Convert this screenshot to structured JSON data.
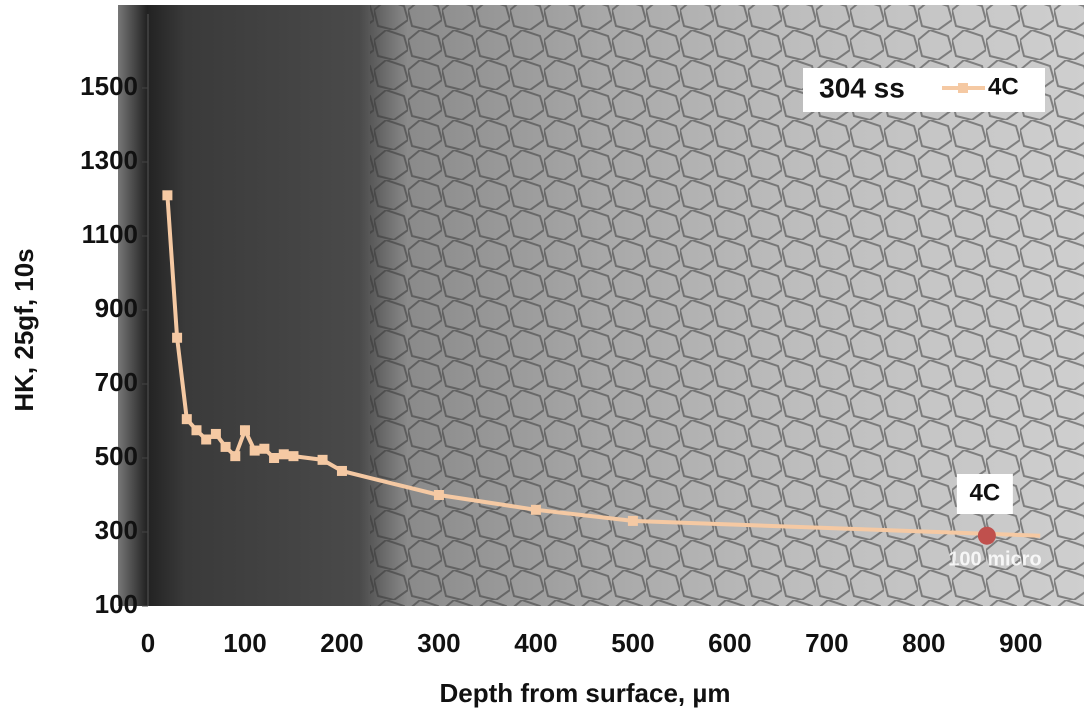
{
  "chart_data": {
    "type": "line",
    "y_label": "HK, 25gf, 10s",
    "x_label": "Depth from surface, µm",
    "material_label": "304 ss",
    "x": [
      20,
      30,
      40,
      50,
      60,
      70,
      80,
      90,
      100,
      110,
      120,
      130,
      140,
      150,
      180,
      200,
      300,
      400,
      500,
      920
    ],
    "series": [
      {
        "name": "4C",
        "color": "#f5c9a3",
        "values": [
          1210,
          825,
          605,
          575,
          550,
          565,
          530,
          505,
          575,
          520,
          525,
          500,
          510,
          505,
          495,
          465,
          400,
          360,
          330,
          290
        ]
      }
    ],
    "highlight": {
      "label": "4C",
      "x": 865,
      "y": 290,
      "color": "#c0504d"
    },
    "scale_label": "100 micro",
    "xlim": [
      0,
      960
    ],
    "xticks": [
      0,
      100,
      200,
      300,
      400,
      500,
      600,
      700,
      800,
      900
    ],
    "ylim": [
      100,
      1700
    ],
    "yticks": [
      100,
      300,
      500,
      700,
      900,
      1100,
      1300,
      1500
    ]
  }
}
